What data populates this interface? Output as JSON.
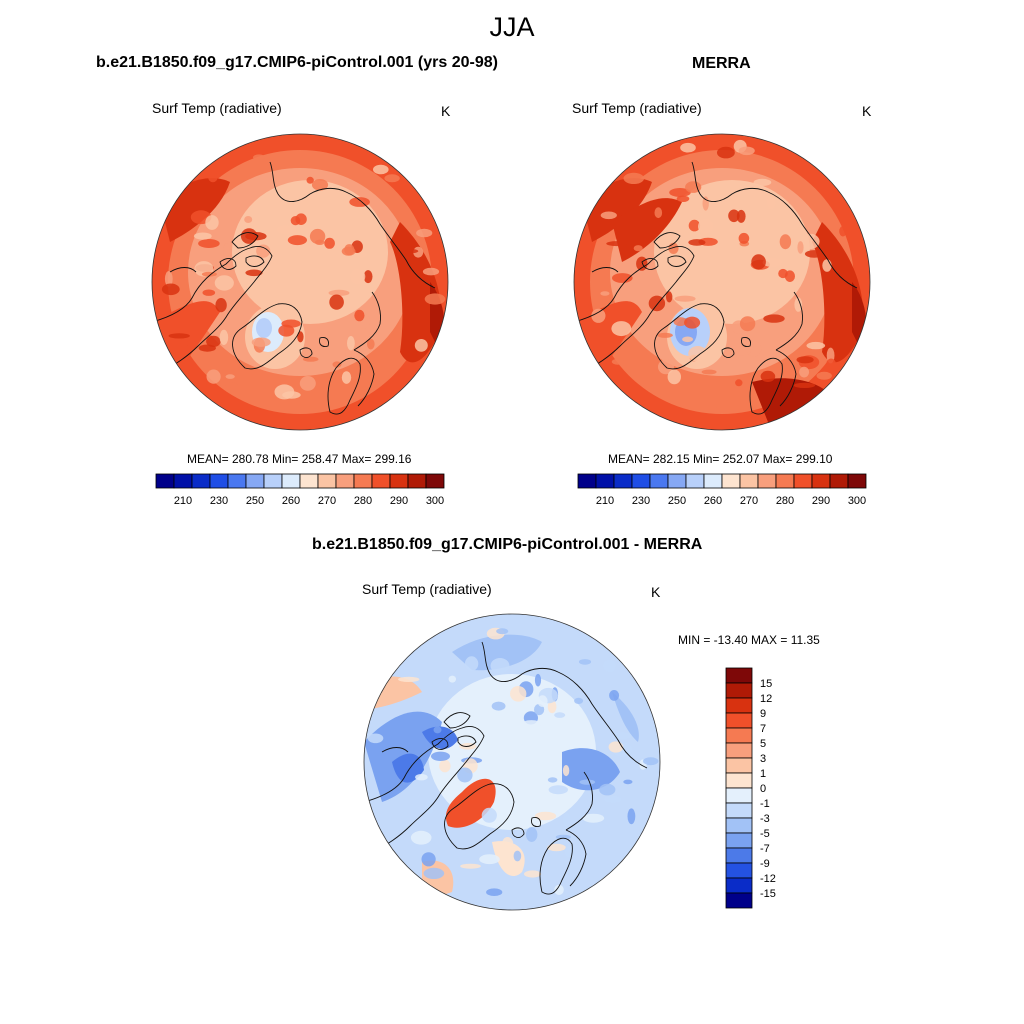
{
  "figure": {
    "title": "JJA"
  },
  "panels": [
    {
      "title": "b.e21.B1850.f09_g17.CMIP6-piControl.001 (yrs 20-98)",
      "variable": "Surf Temp (radiative)",
      "unit": "K",
      "stats": "MEAN= 280.78  Min= 258.47  Max= 299.16"
    },
    {
      "title": "MERRA",
      "variable": "Surf Temp (radiative)",
      "unit": "K",
      "stats": "MEAN= 282.15  Min= 252.07  Max= 299.10"
    },
    {
      "title": "b.e21.B1850.f09_g17.CMIP6-piControl.001 - MERRA",
      "variable": "Surf Temp (radiative)",
      "unit": "K",
      "stats": "MIN = -13.40 MAX =  11.35"
    }
  ],
  "chart_data": [
    {
      "type": "heatmap",
      "projection": "north-polar-stereographic",
      "title": "b.e21.B1850.f09_g17.CMIP6-piControl.001 (yrs 20-98)",
      "variable": "Surf Temp (radiative)",
      "unit": "K",
      "mean": 280.78,
      "min": 258.47,
      "max": 299.16,
      "colorbar_orientation": "horizontal",
      "colorbar_levels": [
        205,
        210,
        220,
        230,
        240,
        250,
        255,
        260,
        265,
        270,
        275,
        280,
        285,
        290,
        295,
        300
      ],
      "colorbar_ticks": [
        "210",
        "230",
        "250",
        "260",
        "270",
        "280",
        "290",
        "300"
      ],
      "colors": [
        "#00008a",
        "#0010a8",
        "#0a2cc8",
        "#1f4ee6",
        "#4a78f0",
        "#86a8f4",
        "#b8d0fa",
        "#dcebfc",
        "#fde4d0",
        "#fbc4a4",
        "#f89f7d",
        "#f57a52",
        "#f0502a",
        "#d83210",
        "#b01a06",
        "#7e0808"
      ]
    },
    {
      "type": "heatmap",
      "projection": "north-polar-stereographic",
      "title": "MERRA",
      "variable": "Surf Temp (radiative)",
      "unit": "K",
      "mean": 282.15,
      "min": 252.07,
      "max": 299.1,
      "colorbar_orientation": "horizontal",
      "colorbar_levels": [
        205,
        210,
        220,
        230,
        240,
        250,
        255,
        260,
        265,
        270,
        275,
        280,
        285,
        290,
        295,
        300
      ],
      "colorbar_ticks": [
        "210",
        "230",
        "250",
        "260",
        "270",
        "280",
        "290",
        "300"
      ],
      "colors": [
        "#00008a",
        "#0010a8",
        "#0a2cc8",
        "#1f4ee6",
        "#4a78f0",
        "#86a8f4",
        "#b8d0fa",
        "#dcebfc",
        "#fde4d0",
        "#fbc4a4",
        "#f89f7d",
        "#f57a52",
        "#f0502a",
        "#d83210",
        "#b01a06",
        "#7e0808"
      ]
    },
    {
      "type": "heatmap",
      "projection": "north-polar-stereographic",
      "title": "b.e21.B1850.f09_g17.CMIP6-piControl.001 - MERRA",
      "variable": "Surf Temp (radiative)",
      "unit": "K",
      "min": -13.4,
      "max": 11.35,
      "colorbar_orientation": "vertical",
      "colorbar_ticks": [
        "15",
        "12",
        "9",
        "7",
        "5",
        "3",
        "1",
        "0",
        "-1",
        "-3",
        "-5",
        "-7",
        "-9",
        "-12",
        "-15"
      ],
      "colors": [
        "#7e0808",
        "#b01a06",
        "#d83210",
        "#f0502a",
        "#f57a52",
        "#f89f7d",
        "#fbc4a4",
        "#fde4d0",
        "#e4f0fc",
        "#c4dafa",
        "#a2c2f6",
        "#7aa2f0",
        "#4c7ae8",
        "#2452e2",
        "#0a2cc8",
        "#00008a"
      ]
    }
  ]
}
